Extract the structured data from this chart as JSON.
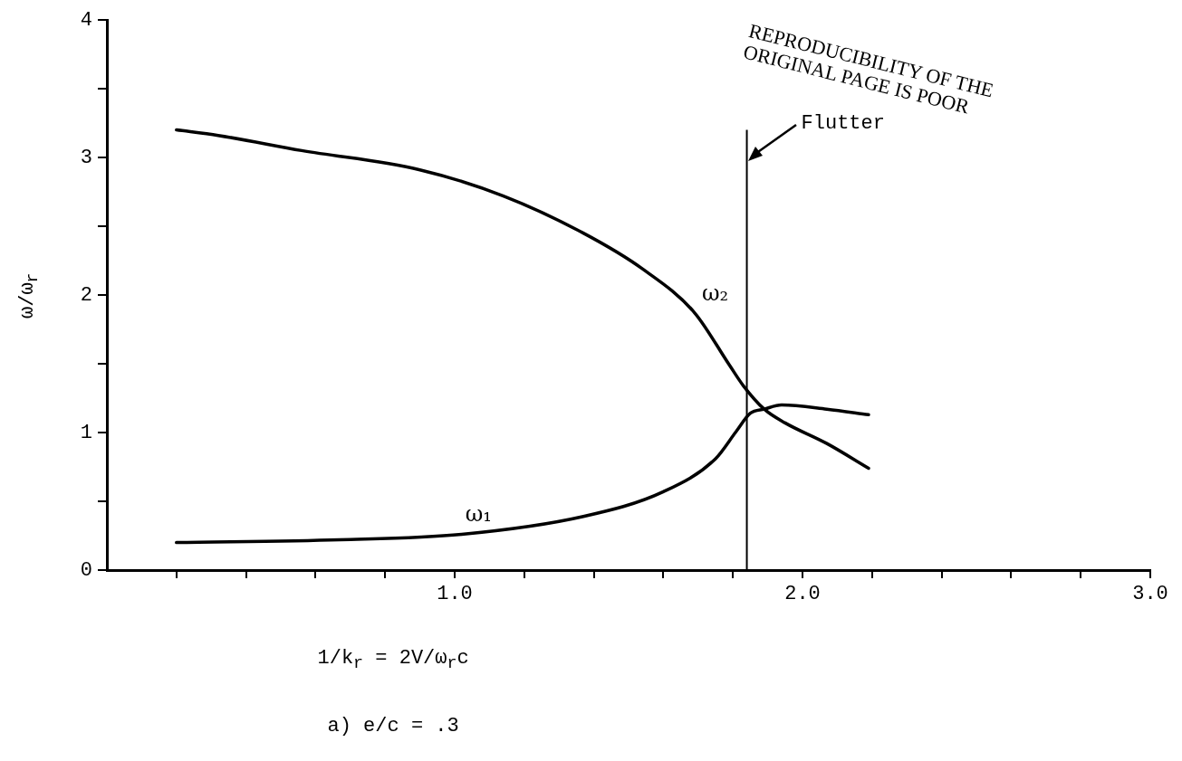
{
  "chart_data": {
    "type": "line",
    "title": "a)  e/c = .3",
    "xlabel": "1/k$_{r}$ = 2V/ω$_{r}$c",
    "ylabel": "ω/ω$_{r}$",
    "xlim": [
      0,
      3.0
    ],
    "ylim": [
      0,
      4
    ],
    "xticks": [
      {
        "value": 0.2,
        "label": null
      },
      {
        "value": 0.4,
        "label": null
      },
      {
        "value": 0.6,
        "label": null
      },
      {
        "value": 0.8,
        "label": null
      },
      {
        "value": 1,
        "label": "1.0"
      },
      {
        "value": 1.2,
        "label": null
      },
      {
        "value": 1.4,
        "label": null
      },
      {
        "value": 1.6,
        "label": null
      },
      {
        "value": 1.8,
        "label": null
      },
      {
        "value": 2,
        "label": "2.0"
      },
      {
        "value": 2.2,
        "label": null
      },
      {
        "value": 2.4,
        "label": null
      },
      {
        "value": 2.6,
        "label": null
      },
      {
        "value": 2.8,
        "label": null
      },
      {
        "value": 3,
        "label": "3.0"
      }
    ],
    "yticks": [
      0,
      {
        "value": 0.5,
        "label": null
      },
      1,
      {
        "value": 1.5,
        "label": null
      },
      2,
      {
        "value": 2.5,
        "label": null
      },
      3,
      {
        "value": 3.5,
        "label": null
      },
      4
    ],
    "grid": false,
    "legend": false,
    "marker": "none",
    "line_style": "solid",
    "series": [
      {
        "name": "ω₂",
        "color": "#000000",
        "x": [
          0.2,
          0.32,
          0.56,
          0.9,
          1.14,
          1.37,
          1.54,
          1.69,
          1.79,
          1.83,
          1.89,
          1.95,
          2.07,
          2.19
        ],
        "values": [
          3.2,
          3.16,
          3.05,
          2.91,
          2.72,
          2.45,
          2.19,
          1.87,
          1.49,
          1.34,
          1.17,
          1.07,
          0.92,
          0.74
        ]
      },
      {
        "name": "ω₁",
        "color": "#000000",
        "x": [
          0.2,
          0.67,
          1.02,
          1.37,
          1.6,
          1.75,
          1.81,
          1.85,
          1.89,
          1.94,
          2.07,
          2.19
        ],
        "values": [
          0.2,
          0.22,
          0.26,
          0.39,
          0.57,
          0.81,
          1.01,
          1.14,
          1.17,
          1.2,
          1.17,
          1.13
        ]
      }
    ],
    "ref_lines": [
      {
        "axis": "x",
        "value": 1.84,
        "label": "Flutter",
        "color": "#000000"
      }
    ],
    "annotations": [
      "REPRODUCIBILITY OF THE ORIGINAL PAGE IS POOR"
    ]
  }
}
